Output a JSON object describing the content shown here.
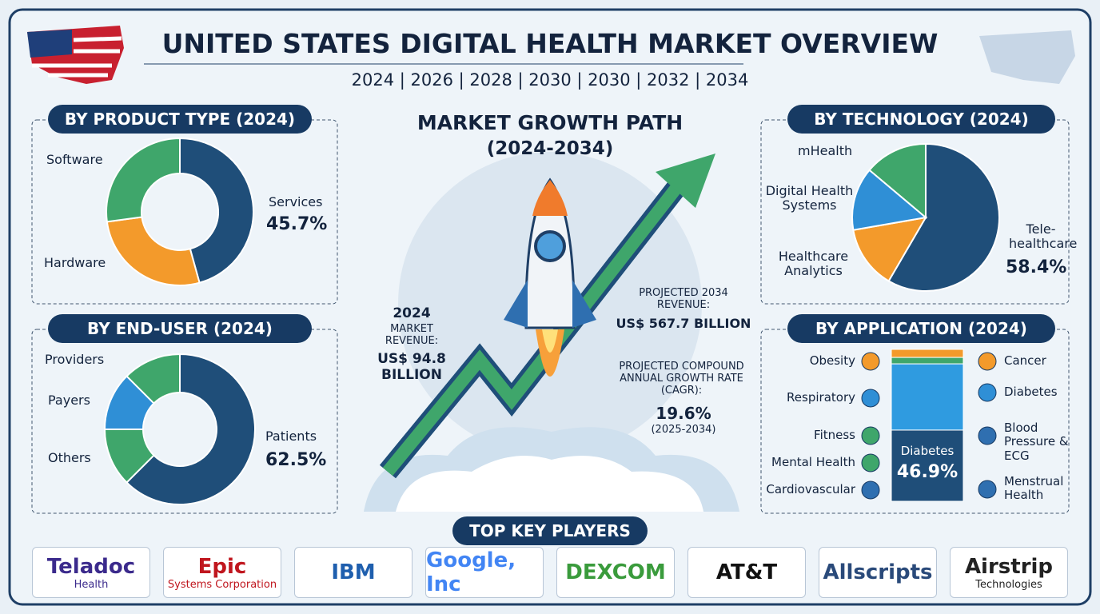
{
  "header": {
    "title": "UNITED STATES DIGITAL HEALTH MARKET OVERVIEW",
    "years": "2024 | 2026 | 2028 | 2030 | 2030 | 2032 | 2034"
  },
  "product_type": {
    "title": "BY PRODUCT TYPE (2024)",
    "labels": [
      "Software",
      "Hardware"
    ],
    "highlight": {
      "label": "Services",
      "value": 45.7,
      "value_label": "45.7%"
    }
  },
  "end_user": {
    "title": "BY END-USER (2024)",
    "labels": [
      "Providers",
      "Payers",
      "Others"
    ],
    "highlight": {
      "label": "Patients",
      "value": 62.5,
      "value_label": "62.5%"
    }
  },
  "growth": {
    "title": "MARKET GROWTH PATH",
    "period": "(2024-2034)",
    "start": {
      "year": "2024",
      "label": "MARKET REVENUE:",
      "value": "US$ 94.8 BILLION"
    },
    "end": {
      "label": "PROJECTED 2034 REVENUE:",
      "value": "US$ 567.7 BILLION"
    },
    "cagr": {
      "label": "PROJECTED COMPOUND ANNUAL GROWTH RATE (CAGR):",
      "value": "19.6%",
      "period": "(2025-2034)"
    }
  },
  "technology": {
    "title": "BY TECHNOLOGY (2024)",
    "labels": [
      "mHealth",
      "Digital Health Systems",
      "Healthcare Analytics"
    ],
    "highlight": {
      "label": "Tele-healthcare",
      "value": 58.4,
      "value_label": "58.4%"
    }
  },
  "application": {
    "title": "BY APPLICATION (2024)",
    "left": [
      "Obesity",
      "Respiratory",
      "Fitness",
      "Mental Health",
      "Cardiovascular"
    ],
    "right": [
      "Cancer",
      "Diabetes",
      "Blood Pressure & ECG",
      "Menstrual Health"
    ],
    "highlight": {
      "label": "Diabetes",
      "value": 46.9,
      "value_label": "46.9%"
    }
  },
  "players": {
    "title": "TOP KEY PLAYERS",
    "logos": [
      [
        "Teladoc",
        "Health"
      ],
      [
        "Epic",
        "Systems Corporation"
      ],
      [
        "IBM"
      ],
      [
        "Google, Inc"
      ],
      [
        "DEXCOM"
      ],
      [
        "AT&T"
      ],
      [
        "Allscripts"
      ],
      [
        "Airstrip",
        "Technologies"
      ]
    ]
  }
}
